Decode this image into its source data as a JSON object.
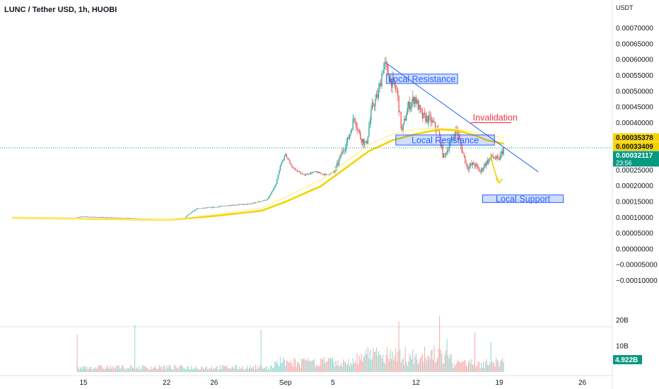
{
  "chart_data": {
    "type": "candlestick",
    "title": "LUNC / Tether USD, 1h, HUOBI",
    "ylabel": "USDT",
    "ylim": [
      -0.000105,
      0.000705
    ],
    "y_ticks": [
      "0.00070000",
      "0.00065000",
      "0.00060000",
      "0.00055000",
      "0.00050000",
      "0.00045000",
      "0.00040000",
      "0.00035000",
      "0.00030000",
      "0.00025000",
      "0.00020000",
      "0.00015000",
      "0.00010000",
      "0.00005000",
      "0.00000000",
      "−0.00005000",
      "−0.00010000"
    ],
    "y_tick_values": [
      0.0007,
      0.00065,
      0.0006,
      0.00055,
      0.0005,
      0.00045,
      0.0004,
      0.00035,
      0.0003,
      0.00025,
      0.0002,
      0.00015,
      0.0001,
      5e-05,
      0,
      -5e-05,
      -0.0001
    ],
    "x_ticks": [
      "15",
      "22",
      "26",
      "Sep",
      "5",
      "12",
      "19",
      "26"
    ],
    "price_series": [
      {
        "d": 9.0,
        "v": 0.000101
      },
      {
        "d": 14.0,
        "v": 0.0001
      },
      {
        "d": 15.0,
        "v": 0.000103
      },
      {
        "d": 20.0,
        "v": 9.6e-05
      },
      {
        "d": 22.0,
        "v": 9.3e-05
      },
      {
        "d": 23.5,
        "v": 0.0001
      },
      {
        "d": 24.5,
        "v": 0.000128
      },
      {
        "d": 26.0,
        "v": 0.000133
      },
      {
        "d": 27.5,
        "v": 0.00014
      },
      {
        "d": 29.0,
        "v": 0.000143
      },
      {
        "d": 30.5,
        "v": 0.000158
      },
      {
        "d": 31.2,
        "v": 0.000205
      },
      {
        "d": 31.6,
        "v": 0.000268
      },
      {
        "d": 32.0,
        "v": 0.0003
      },
      {
        "d": 32.6,
        "v": 0.000258
      },
      {
        "d": 33.5,
        "v": 0.000235
      },
      {
        "d": 34.5,
        "v": 0.000245
      },
      {
        "d": 35.5,
        "v": 0.000235
      },
      {
        "d": 36.2,
        "v": 0.00025
      },
      {
        "d": 36.8,
        "v": 0.00031
      },
      {
        "d": 37.3,
        "v": 0.00035
      },
      {
        "d": 37.8,
        "v": 0.00042
      },
      {
        "d": 38.3,
        "v": 0.000355
      },
      {
        "d": 38.8,
        "v": 0.00033
      },
      {
        "d": 39.3,
        "v": 0.00045
      },
      {
        "d": 39.8,
        "v": 0.00049
      },
      {
        "d": 40.3,
        "v": 0.00059
      },
      {
        "d": 40.8,
        "v": 0.00054
      },
      {
        "d": 41.4,
        "v": 0.0005
      },
      {
        "d": 41.8,
        "v": 0.00037
      },
      {
        "d": 42.3,
        "v": 0.00045
      },
      {
        "d": 42.9,
        "v": 0.00048
      },
      {
        "d": 43.5,
        "v": 0.00042
      },
      {
        "d": 44.2,
        "v": 0.00041
      },
      {
        "d": 44.9,
        "v": 0.00037
      },
      {
        "d": 45.3,
        "v": 0.00029
      },
      {
        "d": 45.8,
        "v": 0.00033
      },
      {
        "d": 46.4,
        "v": 0.00038
      },
      {
        "d": 46.9,
        "v": 0.00031
      },
      {
        "d": 47.3,
        "v": 0.00026
      },
      {
        "d": 47.9,
        "v": 0.00027
      },
      {
        "d": 48.4,
        "v": 0.000245
      },
      {
        "d": 48.8,
        "v": 0.00027
      },
      {
        "d": 49.4,
        "v": 0.000295
      },
      {
        "d": 49.9,
        "v": 0.00028
      },
      {
        "d": 50.4,
        "v": 0.000321
      }
    ],
    "moving_averages": [
      {
        "color": "#f5d300",
        "points": [
          [
            9.0,
            0.0001
          ],
          [
            22.0,
            9.3e-05
          ],
          [
            26.0,
            0.000105
          ],
          [
            30.0,
            0.000122
          ],
          [
            32.0,
            0.00015
          ],
          [
            35.0,
            0.0002
          ],
          [
            37.0,
            0.000255
          ],
          [
            39.0,
            0.00031
          ],
          [
            41.0,
            0.000345
          ],
          [
            43.0,
            0.000365
          ],
          [
            45.0,
            0.00038
          ],
          [
            46.5,
            0.000376
          ],
          [
            48.0,
            0.00036
          ],
          [
            49.0,
            0.000345
          ],
          [
            50.4,
            0.000334
          ]
        ]
      },
      {
        "color": "#fff09a",
        "points": [
          [
            9.0,
            0.000101
          ],
          [
            22.0,
            9.3e-05
          ],
          [
            26.0,
            0.00011
          ],
          [
            30.0,
            0.00013
          ],
          [
            32.0,
            0.000165
          ],
          [
            35.0,
            0.00022
          ],
          [
            37.0,
            0.000275
          ],
          [
            39.0,
            0.00033
          ],
          [
            41.0,
            0.000365
          ],
          [
            43.0,
            0.00038
          ],
          [
            45.0,
            0.000384
          ],
          [
            46.5,
            0.00038
          ],
          [
            48.0,
            0.00037
          ],
          [
            49.0,
            0.00036
          ],
          [
            50.4,
            0.000354
          ]
        ]
      }
    ],
    "price_labels": [
      {
        "text": "0.00035378",
        "value": 0.00035378,
        "color": "#f5d300",
        "text_color": "#131722"
      },
      {
        "text": "0.00033409",
        "value": 0.00033409,
        "color": "#f5d300",
        "text_color": "#131722"
      },
      {
        "text": "0.00032117",
        "value": 0.00032117,
        "color": "#089981",
        "text_color": "#ffffff",
        "sub": "23:56"
      }
    ],
    "annotations": [
      {
        "kind": "box",
        "label": "Local Resistance",
        "d1": 40.5,
        "d2": 46.5,
        "y1": 0.000525,
        "y2": 0.000555
      },
      {
        "kind": "box",
        "label": "Local Resistance",
        "d1": 41.3,
        "d2": 49.6,
        "y1": 0.00033,
        "y2": 0.000362
      },
      {
        "kind": "box",
        "label": "Local Support",
        "d1": 48.6,
        "d2": 55.4,
        "y1": 0.000148,
        "y2": 0.000172
      },
      {
        "kind": "line",
        "label": "Invalidation",
        "d1": 47.6,
        "d2": 51.0,
        "y": 0.000401
      },
      {
        "kind": "trendline",
        "d1": 40.4,
        "y1": 0.000592,
        "d2": 53.3,
        "y2": 0.000245
      },
      {
        "kind": "arrow",
        "points": [
          [
            49.3,
            0.000298
          ],
          [
            49.5,
            0.00025
          ],
          [
            50.0,
            0.00021
          ]
        ]
      }
    ],
    "current_price": 0.00032117,
    "volume": {
      "y_ticks": [
        "20B",
        "10B"
      ],
      "y_tick_values": [
        20,
        10
      ],
      "unit": "B",
      "last_label": "4.922B",
      "last_value": 4.922
    },
    "grid": true
  }
}
